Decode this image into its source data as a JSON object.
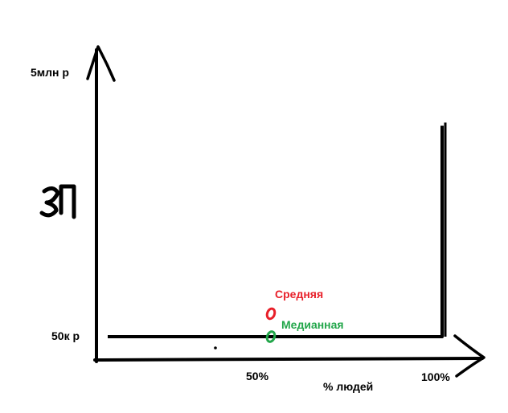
{
  "chart_data": {
    "type": "line",
    "title": "",
    "xlabel": "% людей",
    "ylabel": "ЗП",
    "x_ticks": [
      "50%",
      "100%"
    ],
    "y_ticks": [
      "50к р",
      "5млн р"
    ],
    "series": [
      {
        "values": [
          {
            "x": 0,
            "y": 50000
          },
          {
            "x": 100,
            "y": 50000
          },
          {
            "x": 100,
            "y": 4000000
          }
        ]
      }
    ],
    "annotations": [
      {
        "label": "Средняя",
        "x": 50,
        "y": 480000,
        "color": "#e8202a"
      },
      {
        "label": "Медианная",
        "x": 50,
        "y": 50000,
        "color": "#22a64a"
      }
    ],
    "xlim": [
      0,
      100
    ],
    "grid": false,
    "legend": "none"
  }
}
